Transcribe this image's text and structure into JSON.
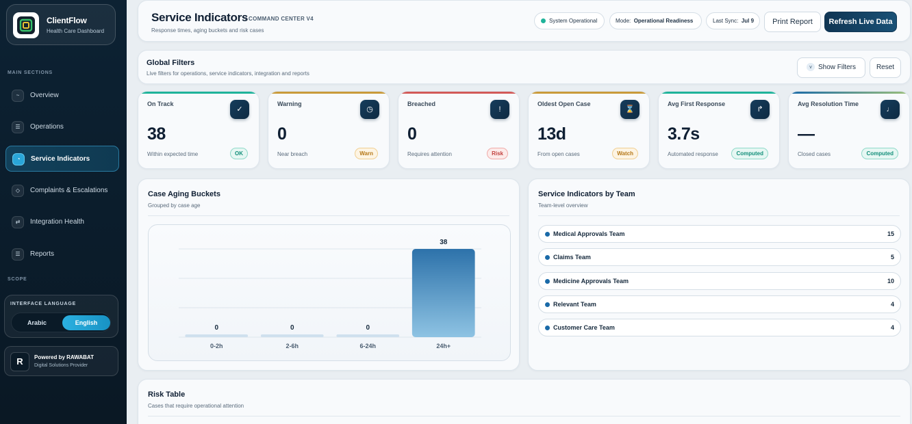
{
  "brand": {
    "title": "ClientFlow",
    "subtitle": "Health Care Dashboard"
  },
  "sidebar": {
    "section_main": "MAIN SECTIONS",
    "items": [
      {
        "label": "Overview",
        "icon": "~"
      },
      {
        "label": "Operations",
        "icon": "☰"
      },
      {
        "label": "Service Indicators",
        "icon": "◔"
      },
      {
        "label": "Complaints & Escalations",
        "icon": "◇"
      },
      {
        "label": "Integration Health",
        "icon": "⇄"
      },
      {
        "label": "Reports",
        "icon": "☰"
      }
    ],
    "section_scope": "SCOPE",
    "language": {
      "title": "INTERFACE LANGUAGE",
      "arabic": "Arabic",
      "english": "English"
    },
    "powered": {
      "title": "Powered by RAWABAT",
      "subtitle": "Digital Solutions Provider",
      "logo": "R"
    }
  },
  "header": {
    "title": "Service Indicators",
    "tag": "/ COMMAND CENTER V4",
    "subtitle": "Response times, aging buckets and risk cases",
    "status": "System Operational",
    "mode_label": "Mode:",
    "mode_value": "Operational Readiness",
    "sync_label": "Last Sync:",
    "sync_value": "Jul 9",
    "print_label": "Print Report",
    "refresh_label": "Refresh Live Data"
  },
  "filters": {
    "title": "Global Filters",
    "subtitle": "Live filters for operations, service indicators, integration and reports",
    "show_label": "Show Filters",
    "reset_label": "Reset",
    "chevron": "v"
  },
  "kpis": [
    {
      "label": "On Track",
      "value": "38",
      "caption": "Within expected time",
      "badge": "OK",
      "icon": "✓",
      "accent": "#1fb39a"
    },
    {
      "label": "Warning",
      "value": "0",
      "caption": "Near breach",
      "badge": "Warn",
      "icon": "◷",
      "accent": "#c99a3a"
    },
    {
      "label": "Breached",
      "value": "0",
      "caption": "Requires attention",
      "badge": "Risk",
      "icon": "!",
      "accent": "#d25a58"
    },
    {
      "label": "Oldest Open Case",
      "value": "13d",
      "caption": "From open cases",
      "badge": "Watch",
      "icon": "⌛",
      "accent": "#c99a3a"
    },
    {
      "label": "Avg First Response",
      "value": "3.7s",
      "caption": "Automated response",
      "badge": "Computed",
      "icon": "↱",
      "accent": "#1fb39a"
    },
    {
      "label": "Avg Resolution Time",
      "value": "—",
      "caption": "Closed cases",
      "badge": "Computed",
      "icon": "♩",
      "accent": "#5ba8a0"
    }
  ],
  "aging": {
    "title": "Case Aging Buckets",
    "subtitle": "Grouped by case age"
  },
  "chart_data": {
    "type": "bar",
    "title": "Case Aging Buckets",
    "categories": [
      "0-2h",
      "2-6h",
      "6-24h",
      "24h+"
    ],
    "values": [
      0,
      0,
      0,
      38
    ],
    "ylim": [
      0,
      38
    ],
    "grid": true,
    "color": "#2d72aa"
  },
  "teams": {
    "title": "Service Indicators by Team",
    "subtitle": "Team-level overview",
    "rows": [
      {
        "name": "Medical Approvals Team",
        "count": "15"
      },
      {
        "name": "Claims Team",
        "count": "5"
      },
      {
        "name": "Medicine Approvals Team",
        "count": "10"
      },
      {
        "name": "Relevant Team",
        "count": "4"
      },
      {
        "name": "Customer Care Team",
        "count": "4"
      }
    ]
  },
  "risk": {
    "title": "Risk Table",
    "subtitle": "Cases that require operational attention"
  }
}
